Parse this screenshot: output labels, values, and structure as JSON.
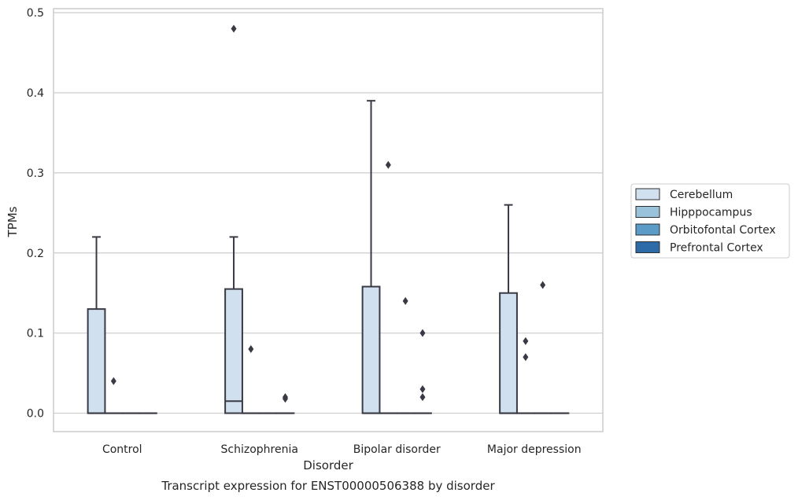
{
  "chart_data": {
    "type": "box",
    "ylabel": "TPMs",
    "xlabel": "Disorder",
    "caption": "Transcript expression for ENST00000506388 by disorder",
    "ylim": [
      -0.023,
      0.505
    ],
    "yticks": [
      0.0,
      0.1,
      0.2,
      0.3,
      0.4,
      0.5
    ],
    "ytick_labels": [
      "0.0",
      "0.1",
      "0.2",
      "0.3",
      "0.4",
      "0.5"
    ],
    "grid": true,
    "legend_position": "right",
    "categories": [
      "Control",
      "Schizophrenia",
      "Bipolar disorder",
      "Major depression"
    ],
    "series": [
      {
        "name": "Cerebellum",
        "color": "#d1e0ee",
        "boxes": [
          {
            "q1": 0.0,
            "median": 0.0,
            "q3": 0.13,
            "whisker_low": 0.0,
            "whisker_high": 0.22,
            "outliers": []
          },
          {
            "q1": 0.0,
            "median": 0.015,
            "q3": 0.155,
            "whisker_low": 0.0,
            "whisker_high": 0.22,
            "outliers": [
              0.48
            ]
          },
          {
            "q1": 0.0,
            "median": 0.0,
            "q3": 0.158,
            "whisker_low": 0.0,
            "whisker_high": 0.39,
            "outliers": []
          },
          {
            "q1": 0.0,
            "median": 0.0,
            "q3": 0.15,
            "whisker_low": 0.0,
            "whisker_high": 0.26,
            "outliers": []
          }
        ]
      },
      {
        "name": "Hipppocampus",
        "color": "#9ac3db",
        "boxes": [
          {
            "q1": 0.0,
            "median": 0.0,
            "q3": 0.0,
            "whisker_low": 0.0,
            "whisker_high": 0.0,
            "outliers": [
              0.04
            ]
          },
          {
            "q1": 0.0,
            "median": 0.0,
            "q3": 0.0,
            "whisker_low": 0.0,
            "whisker_high": 0.0,
            "outliers": [
              0.08
            ]
          },
          {
            "q1": 0.0,
            "median": 0.0,
            "q3": 0.0,
            "whisker_low": 0.0,
            "whisker_high": 0.0,
            "outliers": [
              0.31
            ]
          },
          {
            "q1": 0.0,
            "median": 0.0,
            "q3": 0.0,
            "whisker_low": 0.0,
            "whisker_high": 0.0,
            "outliers": [
              0.09,
              0.07
            ]
          }
        ]
      },
      {
        "name": "Orbitofontal Cortex",
        "color": "#5a9bc7",
        "boxes": [
          {
            "q1": 0.0,
            "median": 0.0,
            "q3": 0.0,
            "whisker_low": 0.0,
            "whisker_high": 0.0,
            "outliers": []
          },
          {
            "q1": 0.0,
            "median": 0.0,
            "q3": 0.0,
            "whisker_low": 0.0,
            "whisker_high": 0.0,
            "outliers": []
          },
          {
            "q1": 0.0,
            "median": 0.0,
            "q3": 0.0,
            "whisker_low": 0.0,
            "whisker_high": 0.0,
            "outliers": [
              0.14
            ]
          },
          {
            "q1": 0.0,
            "median": 0.0,
            "q3": 0.0,
            "whisker_low": 0.0,
            "whisker_high": 0.0,
            "outliers": [
              0.16
            ]
          }
        ]
      },
      {
        "name": "Prefrontal Cortex",
        "color": "#2d6aa8",
        "boxes": [
          {
            "q1": 0.0,
            "median": 0.0,
            "q3": 0.0,
            "whisker_low": 0.0,
            "whisker_high": 0.0,
            "outliers": []
          },
          {
            "q1": 0.0,
            "median": 0.0,
            "q3": 0.0,
            "whisker_low": 0.0,
            "whisker_high": 0.0,
            "outliers": [
              0.02,
              0.018
            ]
          },
          {
            "q1": 0.0,
            "median": 0.0,
            "q3": 0.0,
            "whisker_low": 0.0,
            "whisker_high": 0.0,
            "outliers": [
              0.1,
              0.03,
              0.02
            ]
          },
          {
            "q1": 0.0,
            "median": 0.0,
            "q3": 0.0,
            "whisker_low": 0.0,
            "whisker_high": 0.0,
            "outliers": []
          }
        ]
      }
    ],
    "colors": {
      "grid": "#cccccc",
      "frame": "#cccccc",
      "box_edge": "#3a3a45",
      "outlier": "#3a3a45"
    }
  }
}
